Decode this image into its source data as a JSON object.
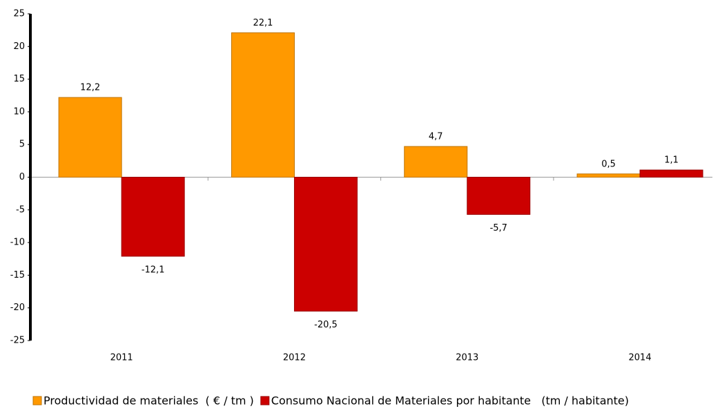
{
  "chart_data": {
    "type": "bar",
    "categories": [
      "2011",
      "2012",
      "2013",
      "2014"
    ],
    "series": [
      {
        "name": "Productividad de materiales  ( € / tm )",
        "color": "#FF9900",
        "values": [
          12.2,
          22.1,
          4.7,
          0.5
        ],
        "value_labels": [
          "12,2",
          "22,1",
          "4,7",
          "0,5"
        ]
      },
      {
        "name": "Consumo Nacional de Materiales por habitante   (tm / habitante)",
        "color": "#CC0000",
        "values": [
          -12.1,
          -20.5,
          -5.7,
          1.1
        ],
        "value_labels": [
          "-12,1",
          "-20,5",
          "-5,7",
          "1,1"
        ]
      }
    ],
    "ylim": [
      -25,
      25
    ],
    "yticks": [
      -25,
      -20,
      -15,
      -10,
      -5,
      0,
      5,
      10,
      15,
      20,
      25
    ],
    "legend": "bottom"
  }
}
